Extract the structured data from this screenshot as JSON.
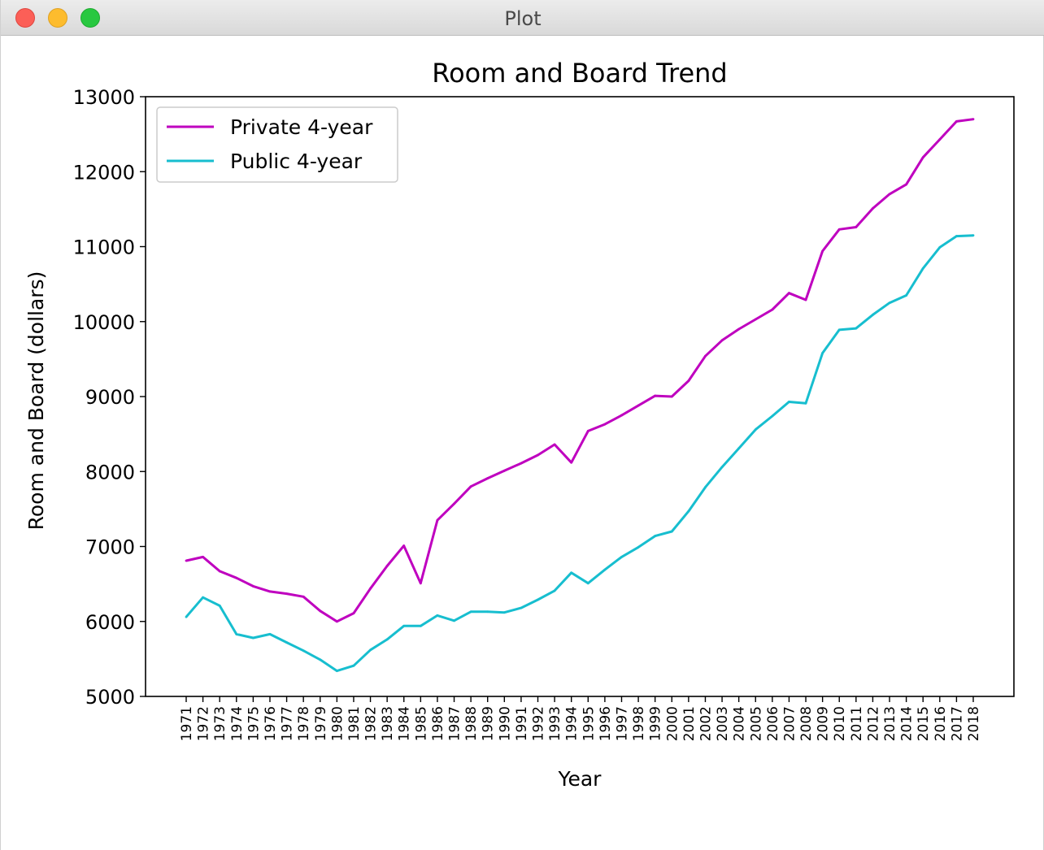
{
  "window": {
    "title": "Plot"
  },
  "chart_data": {
    "type": "line",
    "title": "Room and Board Trend",
    "xlabel": "Year",
    "ylabel": "Room and Board (dollars)",
    "ylim": [
      5000,
      13000
    ],
    "yticks": [
      5000,
      6000,
      7000,
      8000,
      9000,
      10000,
      11000,
      12000,
      13000
    ],
    "categories": [
      "1971",
      "1972",
      "1973",
      "1974",
      "1975",
      "1976",
      "1977",
      "1978",
      "1979",
      "1980",
      "1981",
      "1982",
      "1983",
      "1984",
      "1985",
      "1986",
      "1987",
      "1988",
      "1989",
      "1990",
      "1991",
      "1992",
      "1993",
      "1994",
      "1995",
      "1996",
      "1997",
      "1998",
      "1999",
      "2000",
      "2001",
      "2002",
      "2003",
      "2004",
      "2005",
      "2006",
      "2007",
      "2008",
      "2009",
      "2010",
      "2011",
      "2012",
      "2013",
      "2014",
      "2015",
      "2016",
      "2017",
      "2018"
    ],
    "legend_position": "upper left",
    "grid": false,
    "series": [
      {
        "name": "Private 4-year",
        "color": "#bf00bf",
        "values": [
          6810,
          6860,
          6670,
          6580,
          6470,
          6400,
          6370,
          6330,
          6140,
          6000,
          6110,
          6440,
          6740,
          7010,
          6510,
          7350,
          7570,
          7800,
          7910,
          8010,
          8110,
          8220,
          8360,
          8120,
          8540,
          8630,
          8750,
          8880,
          9010,
          9000,
          9210,
          9540,
          9750,
          9900,
          10030,
          10160,
          10380,
          10290,
          10940,
          11230,
          11260,
          11510,
          11700,
          11830,
          12190,
          12430,
          12670,
          12700
        ]
      },
      {
        "name": "Public 4-year",
        "color": "#17becf",
        "values": [
          6060,
          6320,
          6210,
          5830,
          5780,
          5830,
          5720,
          5610,
          5490,
          5340,
          5410,
          5620,
          5760,
          5940,
          5940,
          6080,
          6010,
          6130,
          6130,
          6120,
          6180,
          6290,
          6410,
          6650,
          6510,
          6690,
          6860,
          6990,
          7140,
          7200,
          7470,
          7790,
          8060,
          8310,
          8560,
          8740,
          8930,
          8910,
          9580,
          9890,
          9910,
          10090,
          10250,
          10350,
          10710,
          10990,
          11140,
          11150
        ]
      }
    ]
  }
}
